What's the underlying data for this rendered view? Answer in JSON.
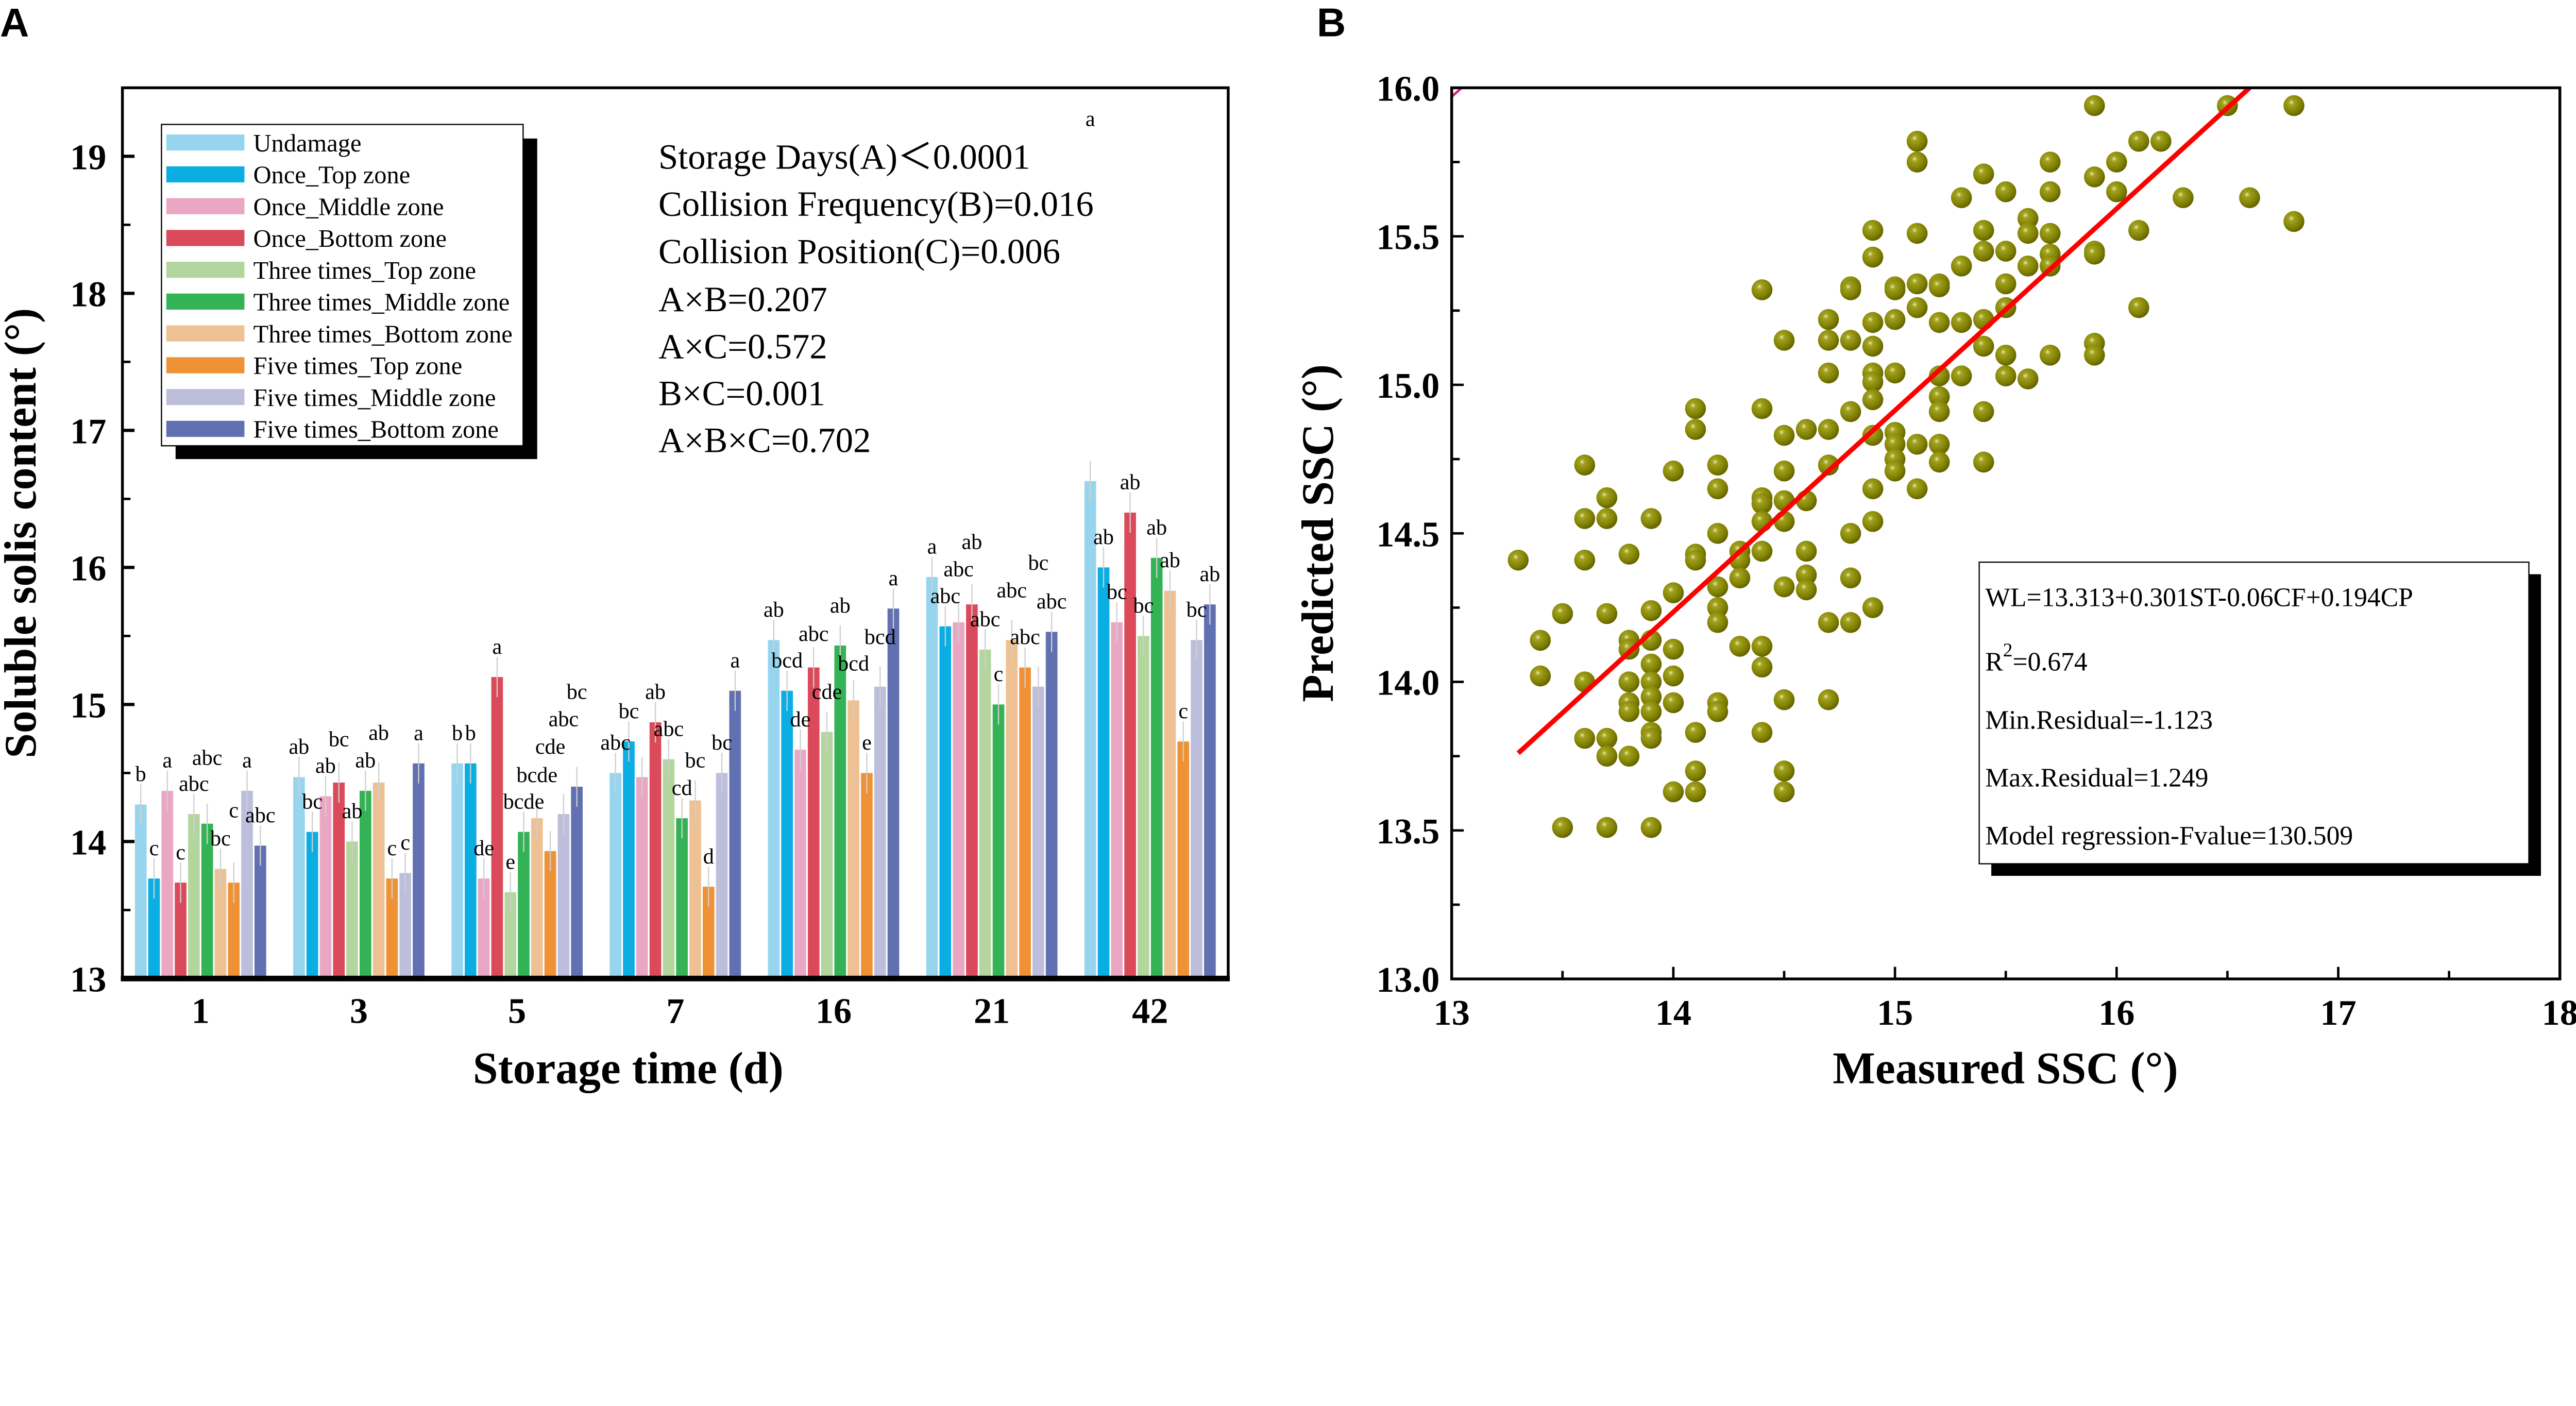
{
  "panels": {
    "a_label": "A",
    "b_label": "B"
  },
  "chart_data": [
    {
      "type": "bar",
      "title": "",
      "xlabel": "Storage time (d)",
      "ylabel": "Soluble solis content (°)",
      "ylim": [
        13,
        19.5
      ],
      "yticks": [
        "13",
        "14",
        "15",
        "16",
        "17",
        "18",
        "19"
      ],
      "legend_position": "top-left",
      "categories": [
        "1",
        "3",
        "5",
        "7",
        "16",
        "21",
        "42"
      ],
      "series": [
        {
          "name": "Undamage",
          "color": "#97d5ef",
          "values": [
            14.27,
            14.47,
            14.57,
            14.5,
            15.47,
            15.93,
            16.63
          ],
          "letters": [
            "b",
            "ab",
            "b",
            "abc",
            "ab",
            "a",
            "a"
          ]
        },
        {
          "name": "Once_Top zone",
          "color": "#0aaee3",
          "values": [
            13.73,
            14.07,
            14.57,
            14.73,
            15.1,
            15.57,
            16.0
          ],
          "letters": [
            "c",
            "bc",
            "b",
            "bc",
            "bcd",
            "abc",
            "ab"
          ]
        },
        {
          "name": "Once_Middle zone",
          "color": "#eaa7c3",
          "values": [
            14.37,
            14.33,
            13.73,
            14.47,
            14.67,
            15.6,
            15.6
          ],
          "letters": [
            "a",
            "ab",
            "de",
            "",
            "de",
            "abc",
            "bc"
          ]
        },
        {
          "name": "Once_Bottom zone",
          "color": "#db4a5a",
          "values": [
            13.7,
            14.43,
            15.2,
            14.87,
            15.27,
            15.73,
            16.4
          ],
          "letters": [
            "c",
            "bc",
            "a",
            "ab",
            "abc",
            "ab",
            "ab"
          ]
        },
        {
          "name": "Three times_Top zone",
          "color": "#b3d59e",
          "values": [
            14.2,
            14.0,
            13.63,
            14.6,
            14.8,
            15.4,
            15.5
          ],
          "letters": [
            "abc",
            "ab",
            "e",
            "abc",
            "cde",
            "abc",
            "bc"
          ]
        },
        {
          "name": "Three times_Middle zone",
          "color": "#34b356",
          "values": [
            14.13,
            14.37,
            14.07,
            14.17,
            15.43,
            15.0,
            16.07
          ],
          "letters": [
            "abc",
            "ab",
            "bcde",
            "cd",
            "ab",
            "c",
            "ab"
          ]
        },
        {
          "name": "Three times_Bottom zone",
          "color": "#edc193",
          "values": [
            13.8,
            14.43,
            14.17,
            14.3,
            15.03,
            15.47,
            15.83
          ],
          "letters": [
            "bc",
            "ab",
            "bcde",
            "bc",
            "bcd",
            "abc",
            "ab"
          ]
        },
        {
          "name": "Five times_Top zone",
          "color": "#ef9236",
          "values": [
            13.7,
            13.73,
            13.93,
            13.67,
            14.5,
            15.27,
            14.73
          ],
          "letters": [
            "c",
            "c",
            "cde",
            "d",
            "e",
            "abc",
            "c"
          ]
        },
        {
          "name": "Five times_Middle zone",
          "color": "#bcbedb",
          "values": [
            14.37,
            13.77,
            14.2,
            14.5,
            15.13,
            15.13,
            15.47
          ],
          "letters": [
            "a",
            "c",
            "abc",
            "bc",
            "bcd",
            "bc",
            "bc"
          ]
        },
        {
          "name": "Five times_Bottom zone",
          "color": "#6170b0",
          "values": [
            13.97,
            14.57,
            14.4,
            15.1,
            15.7,
            15.53,
            15.73
          ],
          "letters": [
            "abc",
            "a",
            "bc",
            "a",
            "a",
            "abc",
            "ab"
          ]
        }
      ],
      "annotations": [
        "Storage Days(A)＜0.0001",
        "Collision Frequency(B)=0.016",
        "Collision Position(C)=0.006",
        "A×B=0.207",
        "A×C=0.572",
        "B×C=0.001",
        "A×B×C=0.702"
      ]
    },
    {
      "type": "scatter",
      "title": "",
      "xlabel": "Measured SSC (°)",
      "ylabel": "Predicted SSC (°)",
      "xlim": [
        13,
        18
      ],
      "ylim": [
        13,
        16
      ],
      "xticks": [
        "13",
        "14",
        "15",
        "16",
        "17",
        "18"
      ],
      "yticks": [
        "13.0",
        "13.5",
        "14.0",
        "14.5",
        "15.0",
        "15.5",
        "16.0"
      ],
      "point_color": "#7d7d00",
      "fit_line": {
        "color": "#ff0000",
        "x": [
          13.3,
          16.6
        ],
        "y": [
          13.76,
          16.0
        ]
      },
      "stats_box": {
        "equation": "WL=13.313+0.301ST-0.06CF+0.194CP",
        "r2_label": "R",
        "r2_sup": "2",
        "r2_value": "=0.674",
        "min_residual": "Min.Residual=-1.123",
        "max_residual": "Max.Residual=1.249",
        "f_value": "Model regression-Fvalue=130.509"
      },
      "points": [
        [
          13.3,
          14.41
        ],
        [
          13.4,
          14.14
        ],
        [
          13.4,
          14.02
        ],
        [
          13.5,
          14.23
        ],
        [
          13.5,
          13.51
        ],
        [
          13.6,
          14.73
        ],
        [
          13.6,
          14.55
        ],
        [
          13.6,
          14.41
        ],
        [
          13.6,
          14.0
        ],
        [
          13.6,
          13.81
        ],
        [
          13.7,
          14.62
        ],
        [
          13.7,
          14.55
        ],
        [
          13.7,
          14.23
        ],
        [
          13.7,
          13.81
        ],
        [
          13.7,
          13.75
        ],
        [
          13.7,
          13.51
        ],
        [
          13.8,
          14.43
        ],
        [
          13.8,
          14.14
        ],
        [
          13.8,
          14.11
        ],
        [
          13.8,
          14.0
        ],
        [
          13.8,
          13.93
        ],
        [
          13.8,
          13.9
        ],
        [
          13.8,
          13.75
        ],
        [
          13.9,
          14.55
        ],
        [
          13.9,
          14.24
        ],
        [
          13.9,
          14.14
        ],
        [
          13.9,
          14.06
        ],
        [
          13.9,
          14.0
        ],
        [
          13.9,
          13.95
        ],
        [
          13.9,
          13.9
        ],
        [
          13.9,
          13.83
        ],
        [
          13.9,
          13.81
        ],
        [
          13.9,
          13.51
        ],
        [
          14.0,
          14.71
        ],
        [
          14.0,
          14.3
        ],
        [
          14.0,
          14.11
        ],
        [
          14.0,
          14.02
        ],
        [
          14.0,
          13.93
        ],
        [
          14.0,
          13.63
        ],
        [
          14.1,
          14.92
        ],
        [
          14.1,
          14.85
        ],
        [
          14.1,
          14.43
        ],
        [
          14.1,
          14.41
        ],
        [
          14.1,
          13.83
        ],
        [
          14.1,
          13.7
        ],
        [
          14.1,
          13.63
        ],
        [
          14.2,
          14.73
        ],
        [
          14.2,
          14.65
        ],
        [
          14.2,
          14.5
        ],
        [
          14.2,
          14.32
        ],
        [
          14.2,
          14.25
        ],
        [
          14.2,
          14.2
        ],
        [
          14.2,
          13.93
        ],
        [
          14.2,
          13.9
        ],
        [
          14.3,
          14.44
        ],
        [
          14.3,
          14.41
        ],
        [
          14.3,
          14.35
        ],
        [
          14.3,
          14.12
        ],
        [
          14.4,
          15.32
        ],
        [
          14.4,
          14.92
        ],
        [
          14.4,
          14.62
        ],
        [
          14.4,
          14.6
        ],
        [
          14.4,
          14.54
        ],
        [
          14.4,
          14.44
        ],
        [
          14.4,
          14.12
        ],
        [
          14.4,
          14.05
        ],
        [
          14.4,
          13.83
        ],
        [
          14.5,
          15.15
        ],
        [
          14.5,
          14.83
        ],
        [
          14.5,
          14.71
        ],
        [
          14.5,
          14.61
        ],
        [
          14.5,
          14.54
        ],
        [
          14.5,
          14.32
        ],
        [
          14.5,
          13.94
        ],
        [
          14.5,
          13.7
        ],
        [
          14.5,
          13.63
        ],
        [
          14.6,
          14.85
        ],
        [
          14.6,
          14.61
        ],
        [
          14.6,
          14.44
        ],
        [
          14.6,
          14.36
        ],
        [
          14.6,
          14.31
        ],
        [
          14.7,
          15.22
        ],
        [
          14.7,
          15.15
        ],
        [
          14.7,
          15.04
        ],
        [
          14.7,
          14.85
        ],
        [
          14.7,
          14.73
        ],
        [
          14.7,
          14.2
        ],
        [
          14.7,
          13.94
        ],
        [
          14.8,
          15.33
        ],
        [
          14.8,
          15.32
        ],
        [
          14.8,
          15.15
        ],
        [
          14.8,
          14.91
        ],
        [
          14.8,
          14.5
        ],
        [
          14.8,
          14.35
        ],
        [
          14.8,
          14.2
        ],
        [
          14.9,
          15.52
        ],
        [
          14.9,
          15.43
        ],
        [
          14.9,
          15.21
        ],
        [
          14.9,
          15.13
        ],
        [
          14.9,
          15.04
        ],
        [
          14.9,
          15.01
        ],
        [
          14.9,
          14.95
        ],
        [
          14.9,
          14.83
        ],
        [
          14.9,
          14.65
        ],
        [
          14.9,
          14.54
        ],
        [
          14.9,
          14.25
        ],
        [
          15.0,
          15.33
        ],
        [
          15.0,
          15.32
        ],
        [
          15.0,
          15.22
        ],
        [
          15.0,
          15.04
        ],
        [
          15.0,
          14.84
        ],
        [
          15.0,
          14.8
        ],
        [
          15.0,
          14.75
        ],
        [
          15.0,
          14.71
        ],
        [
          15.1,
          15.82
        ],
        [
          15.1,
          15.75
        ],
        [
          15.1,
          15.51
        ],
        [
          15.1,
          15.34
        ],
        [
          15.1,
          15.26
        ],
        [
          15.1,
          14.8
        ],
        [
          15.1,
          14.65
        ],
        [
          15.2,
          15.34
        ],
        [
          15.2,
          15.33
        ],
        [
          15.2,
          15.21
        ],
        [
          15.2,
          15.03
        ],
        [
          15.2,
          14.96
        ],
        [
          15.2,
          14.91
        ],
        [
          15.2,
          14.8
        ],
        [
          15.2,
          14.74
        ],
        [
          15.3,
          15.63
        ],
        [
          15.3,
          15.4
        ],
        [
          15.3,
          15.21
        ],
        [
          15.3,
          15.03
        ],
        [
          15.4,
          15.71
        ],
        [
          15.4,
          15.52
        ],
        [
          15.4,
          15.45
        ],
        [
          15.4,
          15.22
        ],
        [
          15.4,
          15.13
        ],
        [
          15.4,
          14.91
        ],
        [
          15.4,
          14.74
        ],
        [
          15.5,
          15.65
        ],
        [
          15.5,
          15.45
        ],
        [
          15.5,
          15.34
        ],
        [
          15.5,
          15.26
        ],
        [
          15.5,
          15.1
        ],
        [
          15.5,
          15.03
        ],
        [
          15.6,
          15.56
        ],
        [
          15.6,
          15.51
        ],
        [
          15.6,
          15.4
        ],
        [
          15.6,
          15.02
        ],
        [
          15.7,
          15.75
        ],
        [
          15.7,
          15.65
        ],
        [
          15.7,
          15.51
        ],
        [
          15.7,
          15.44
        ],
        [
          15.7,
          15.4
        ],
        [
          15.7,
          15.1
        ],
        [
          15.9,
          15.94
        ],
        [
          15.9,
          15.7
        ],
        [
          15.9,
          15.45
        ],
        [
          15.9,
          15.44
        ],
        [
          15.9,
          15.14
        ],
        [
          15.9,
          15.1
        ],
        [
          16.0,
          15.75
        ],
        [
          16.0,
          15.65
        ],
        [
          16.1,
          15.82
        ],
        [
          16.1,
          15.52
        ],
        [
          16.1,
          15.26
        ],
        [
          16.2,
          15.82
        ],
        [
          16.3,
          15.63
        ],
        [
          16.5,
          15.94
        ],
        [
          16.6,
          15.63
        ],
        [
          16.8,
          15.94
        ],
        [
          16.8,
          15.55
        ]
      ]
    }
  ]
}
